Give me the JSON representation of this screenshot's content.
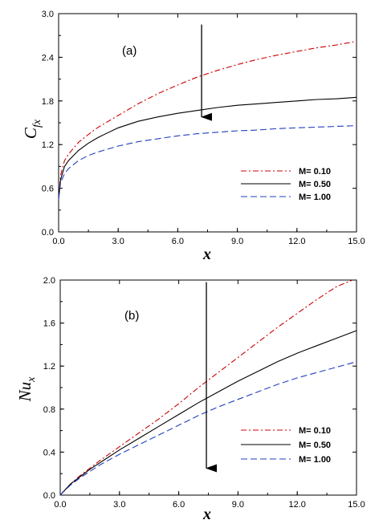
{
  "chart_data": [
    {
      "type": "line",
      "panel_label": "(a)",
      "xlabel": "x",
      "ylabel": "C",
      "ylabel_sub": "fx",
      "xlim": [
        0,
        15
      ],
      "ylim": [
        0,
        3
      ],
      "x_ticks": [
        "0.0",
        "3.0",
        "6.0",
        "9.0",
        "12.0",
        "15.0"
      ],
      "y_ticks": [
        "0.0",
        "0.6",
        "1.2",
        "1.8",
        "2.4",
        "3.0"
      ],
      "x_tick_values": [
        0,
        3,
        6,
        9,
        12,
        15
      ],
      "y_tick_values": [
        0,
        0.6,
        1.2,
        1.8,
        2.4,
        3.0
      ],
      "grid": false,
      "legend_position": "lower-right",
      "annotation": "arrow pointing down (increasing M)",
      "arrow": {
        "x": 7.2,
        "y_start": 2.85,
        "y_end": 1.58
      },
      "series": [
        {
          "name": "M= 0.10",
          "color": "#cc0000",
          "style": "dash-dot",
          "x": [
            0,
            0.1,
            0.3,
            0.5,
            1,
            1.5,
            2,
            3,
            4,
            5,
            6,
            7,
            8,
            9,
            10,
            11,
            12,
            13,
            14,
            15
          ],
          "values": [
            0.45,
            0.78,
            0.98,
            1.07,
            1.23,
            1.34,
            1.44,
            1.6,
            1.76,
            1.9,
            2.02,
            2.13,
            2.22,
            2.3,
            2.37,
            2.43,
            2.48,
            2.53,
            2.57,
            2.62
          ]
        },
        {
          "name": "M= 0.50",
          "color": "#000000",
          "style": "solid",
          "x": [
            0,
            0.1,
            0.3,
            0.5,
            1,
            1.5,
            2,
            3,
            4,
            5,
            6,
            7,
            8,
            9,
            10,
            11,
            12,
            13,
            14,
            15
          ],
          "values": [
            0.45,
            0.72,
            0.9,
            0.98,
            1.12,
            1.22,
            1.3,
            1.43,
            1.52,
            1.58,
            1.63,
            1.67,
            1.71,
            1.74,
            1.76,
            1.78,
            1.8,
            1.82,
            1.83,
            1.85
          ]
        },
        {
          "name": "M= 1.00",
          "color": "#1f3fbf",
          "style": "dashed",
          "x": [
            0,
            0.1,
            0.3,
            0.5,
            1,
            1.5,
            2,
            3,
            4,
            5,
            6,
            7,
            8,
            9,
            10,
            11,
            12,
            13,
            14,
            15
          ],
          "values": [
            0.45,
            0.68,
            0.8,
            0.87,
            0.98,
            1.05,
            1.1,
            1.18,
            1.24,
            1.28,
            1.32,
            1.35,
            1.37,
            1.39,
            1.4,
            1.42,
            1.43,
            1.44,
            1.45,
            1.46
          ]
        }
      ]
    },
    {
      "type": "line",
      "panel_label": "(b)",
      "xlabel": "x",
      "ylabel": "Nu",
      "ylabel_sub": "x",
      "xlim": [
        0,
        15
      ],
      "ylim": [
        0,
        2
      ],
      "x_ticks": [
        "0.0",
        "3.0",
        "6.0",
        "9.0",
        "12.0",
        "15.0"
      ],
      "y_ticks": [
        "0.0",
        "0.4",
        "0.8",
        "1.2",
        "1.6",
        "2.0"
      ],
      "x_tick_values": [
        0,
        3,
        6,
        9,
        12,
        15
      ],
      "y_tick_values": [
        0,
        0.4,
        0.8,
        1.2,
        1.6,
        2.0
      ],
      "grid": false,
      "legend_position": "lower-right",
      "annotation": "arrow pointing down (increasing M)",
      "arrow": {
        "x": 7.4,
        "y_start": 1.98,
        "y_end": 0.25
      },
      "series": [
        {
          "name": "M= 0.10",
          "color": "#cc0000",
          "style": "dash-dot",
          "x": [
            0,
            0.5,
            1,
            1.5,
            2,
            3,
            4,
            5,
            6,
            7,
            8,
            9,
            10,
            11,
            12,
            13,
            14,
            14.8
          ],
          "values": [
            0,
            0.1,
            0.18,
            0.25,
            0.32,
            0.45,
            0.58,
            0.71,
            0.85,
            1.0,
            1.14,
            1.28,
            1.42,
            1.56,
            1.69,
            1.82,
            1.94,
            2.0
          ]
        },
        {
          "name": "M= 0.50",
          "color": "#000000",
          "style": "solid",
          "x": [
            0,
            0.5,
            1,
            1.5,
            2,
            3,
            4,
            5,
            6,
            7,
            8,
            9,
            10,
            11,
            12,
            13,
            14,
            15
          ],
          "values": [
            0,
            0.1,
            0.17,
            0.24,
            0.3,
            0.42,
            0.53,
            0.64,
            0.75,
            0.86,
            0.96,
            1.06,
            1.15,
            1.24,
            1.32,
            1.39,
            1.46,
            1.53
          ]
        },
        {
          "name": "M= 1.00",
          "color": "#1f3fbf",
          "style": "dashed",
          "x": [
            0,
            0.5,
            1,
            1.5,
            2,
            3,
            4,
            5,
            6,
            7,
            8,
            9,
            10,
            11,
            12,
            13,
            14,
            15
          ],
          "values": [
            0,
            0.09,
            0.16,
            0.22,
            0.28,
            0.38,
            0.47,
            0.56,
            0.65,
            0.74,
            0.82,
            0.89,
            0.96,
            1.03,
            1.09,
            1.14,
            1.19,
            1.24
          ]
        }
      ]
    }
  ]
}
